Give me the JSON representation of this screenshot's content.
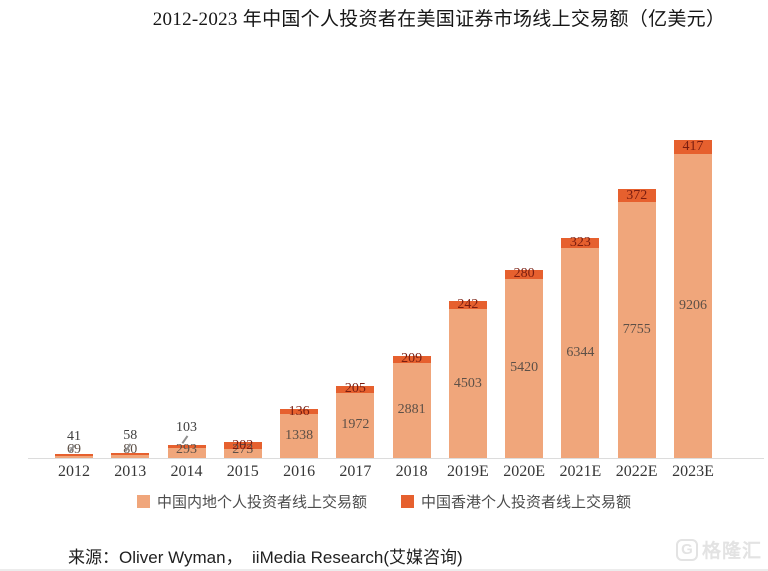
{
  "title": "2012-2023 年中国个人投资者在美国证券市场线上交易额（亿美元）",
  "chart_data": {
    "type": "bar",
    "stacked": true,
    "grid": false,
    "legend_position": "bottom",
    "categories": [
      "2012",
      "2013",
      "2014",
      "2015",
      "2016",
      "2017",
      "2018",
      "2019E",
      "2020E",
      "2021E",
      "2022E",
      "2023E"
    ],
    "series": [
      {
        "name": "中国内地个人投资者线上交易额",
        "color": "#f0a67b",
        "label_color": "#5d5047",
        "values": [
          69,
          80,
          293,
          273,
          1338,
          1972,
          2881,
          4503,
          5420,
          6344,
          7755,
          9206
        ]
      },
      {
        "name": "中国香港个人投资者线上交易额",
        "color": "#e6602e",
        "label_color": "#7a1d10",
        "values": [
          41,
          58,
          103,
          202,
          136,
          205,
          209,
          242,
          280,
          323,
          372,
          417
        ]
      }
    ],
    "outside_label_color": "#3f3f3f",
    "ylim": [
      0,
      9623
    ]
  },
  "source": {
    "label": "来源：Oliver Wyman，  iiMedia Research(艾媒咨询)"
  },
  "watermark": {
    "logo": "G",
    "text": "格隆汇"
  }
}
